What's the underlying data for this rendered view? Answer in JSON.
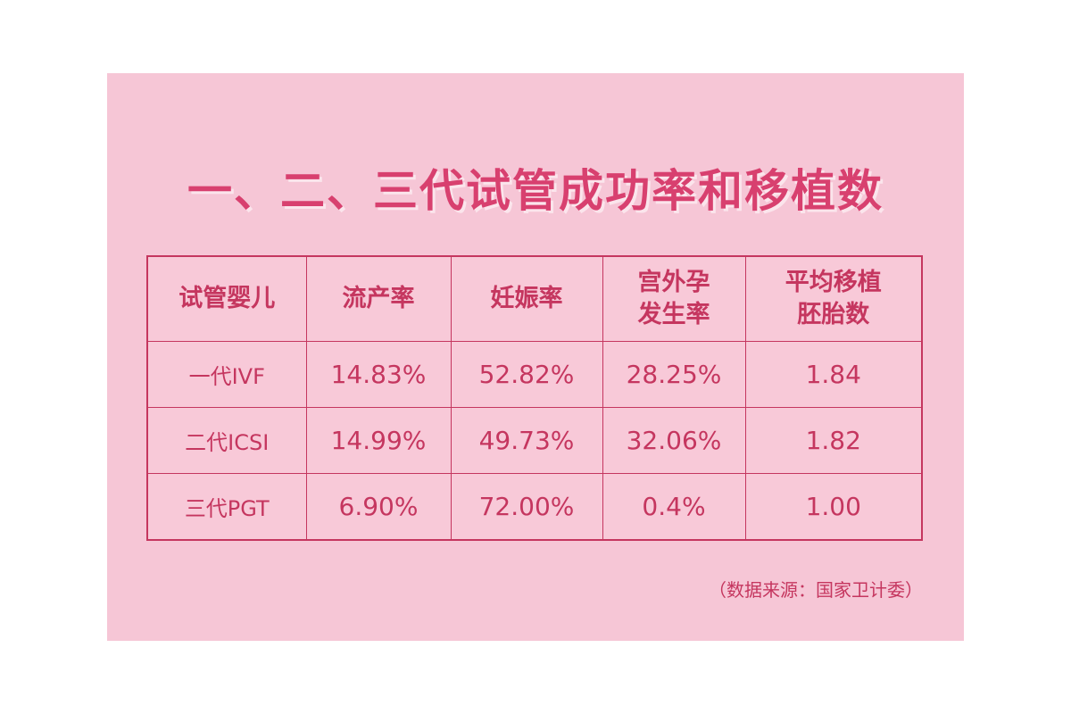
{
  "title": "一、二、三代试管成功率和移植数",
  "table": {
    "headers": [
      "试管婴儿",
      "流产率",
      "妊娠率",
      "宫外孕\n发生率",
      "平均移植\n胚胎数"
    ],
    "rows": [
      {
        "label": "一代IVF",
        "cells": [
          "14.83%",
          "52.82%",
          "28.25%",
          "1.84"
        ]
      },
      {
        "label": "二代ICSI",
        "cells": [
          "14.99%",
          "49.73%",
          "32.06%",
          "1.82"
        ]
      },
      {
        "label": "三代PGT",
        "cells": [
          "6.90%",
          "72.00%",
          "0.4%",
          "1.00"
        ]
      }
    ]
  },
  "source": "（数据来源：国家卫计委）",
  "colors": {
    "background": "#f6c6d6",
    "accent": "#c5365f",
    "title": "#d8406f"
  }
}
